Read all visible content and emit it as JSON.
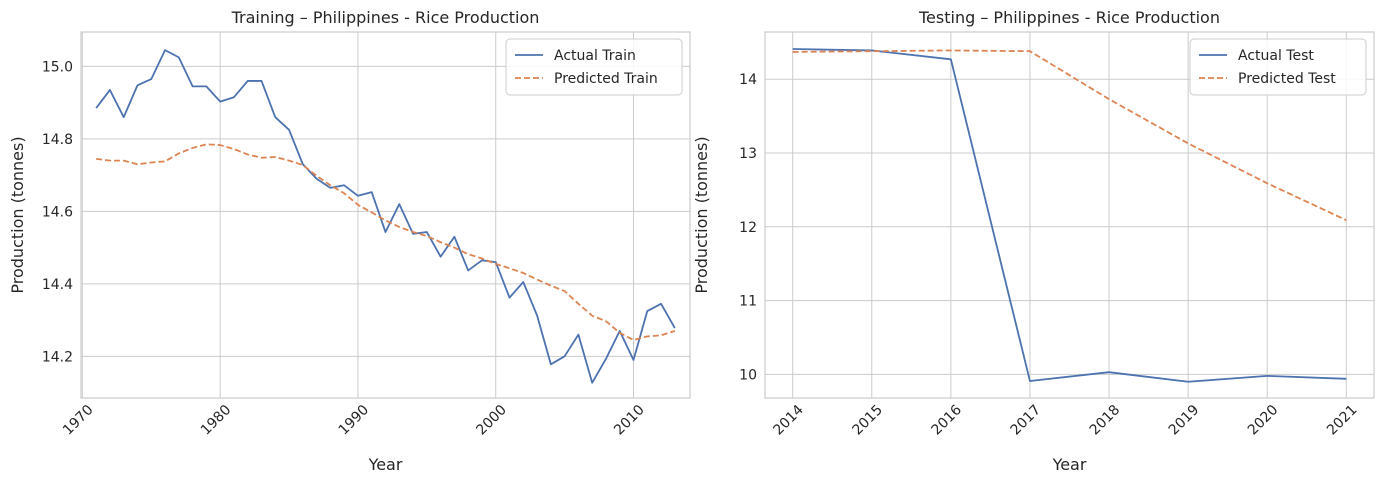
{
  "chart_data": [
    {
      "type": "line",
      "title": "Training – Philippines - Rice Production",
      "xlabel": "Year",
      "ylabel": "Production (tonnes)",
      "xlim": [
        1969.9,
        1974.1
      ],
      "ylim": [
        14.085,
        15.095
      ],
      "xticks": [
        1970,
        1980,
        1990,
        2000,
        2010
      ],
      "yticks": [
        14.2,
        14.4,
        14.6,
        14.8,
        15.0
      ],
      "ytick_labels": [
        "14.2",
        "14.4",
        "14.6",
        "14.8",
        "15.0"
      ],
      "grid": true,
      "legend": "top-right",
      "x": [
        1971,
        1972,
        1973,
        1974,
        1975,
        1976,
        1977,
        1978,
        1979,
        1980,
        1981,
        1982,
        1983,
        1984,
        1985,
        1986,
        1987,
        1988,
        1989,
        1990,
        1991,
        1992,
        1993,
        1994,
        1995,
        1996,
        1997,
        1998,
        1999,
        2000,
        2001,
        2002,
        2003,
        2004,
        2005,
        2006,
        2007,
        2008,
        2009,
        2010,
        2011,
        2012,
        2013
      ],
      "series": [
        {
          "name": "Actual Train",
          "color": "#4c72b0",
          "dash": "solid",
          "values": [
            14.885,
            14.935,
            14.86,
            14.948,
            14.965,
            15.045,
            15.025,
            14.945,
            14.945,
            14.903,
            14.915,
            14.96,
            14.96,
            14.86,
            14.825,
            14.73,
            14.69,
            14.665,
            14.672,
            14.643,
            14.653,
            14.543,
            14.62,
            14.538,
            14.543,
            14.475,
            14.53,
            14.437,
            14.465,
            14.46,
            14.362,
            14.405,
            14.313,
            14.178,
            14.2,
            14.26,
            14.127,
            14.193,
            14.27,
            14.19,
            14.325,
            14.345,
            14.278
          ]
        },
        {
          "name": "Predicted Train",
          "color": "#dd8452",
          "dash": "dashed",
          "values": [
            14.745,
            14.74,
            14.74,
            14.73,
            14.735,
            14.738,
            14.76,
            14.775,
            14.785,
            14.783,
            14.772,
            14.757,
            14.748,
            14.75,
            14.74,
            14.728,
            14.698,
            14.672,
            14.65,
            14.618,
            14.597,
            14.575,
            14.557,
            14.543,
            14.532,
            14.515,
            14.5,
            14.482,
            14.47,
            14.455,
            14.443,
            14.43,
            14.412,
            14.395,
            14.38,
            14.345,
            14.312,
            14.297,
            14.265,
            14.245,
            14.255,
            14.258,
            14.27
          ]
        }
      ]
    },
    {
      "type": "line",
      "title": "Testing – Philippines - Rice Production",
      "xlabel": "Year",
      "ylabel": "Production (tonnes)",
      "ylim": [
        9.68,
        14.64
      ],
      "xticks": [
        2014,
        2015,
        2016,
        2017,
        2018,
        2019,
        2020,
        2021
      ],
      "yticks": [
        10,
        11,
        12,
        13,
        14
      ],
      "ytick_labels": [
        "10",
        "11",
        "12",
        "13",
        "14"
      ],
      "grid": true,
      "legend": "top-right",
      "x": [
        2014,
        2015,
        2016,
        2017,
        2018,
        2019,
        2020,
        2021
      ],
      "series": [
        {
          "name": "Actual Test",
          "color": "#4c72b0",
          "dash": "solid",
          "values": [
            14.41,
            14.39,
            14.27,
            9.91,
            10.03,
            9.9,
            9.98,
            9.94
          ]
        },
        {
          "name": "Predicted Test",
          "color": "#dd8452",
          "dash": "dashed",
          "values": [
            14.37,
            14.38,
            14.39,
            14.38,
            13.73,
            13.13,
            12.59,
            12.09
          ]
        }
      ]
    }
  ]
}
